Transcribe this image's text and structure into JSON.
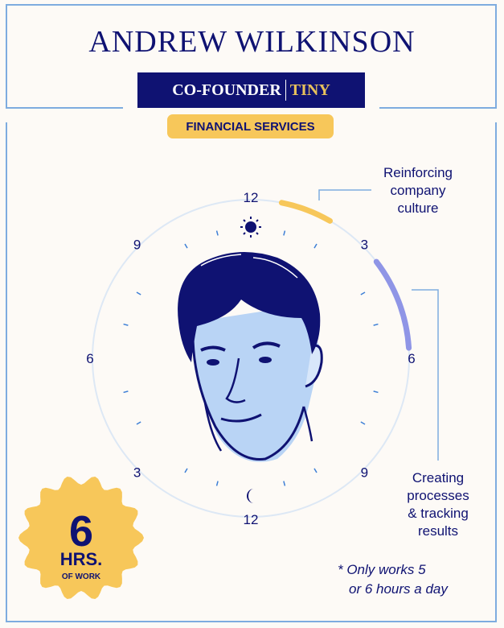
{
  "header": {
    "name": "ANDREW WILKINSON",
    "role": "CO-FOUNDER",
    "company": "TINY",
    "industry": "FINANCIAL SERVICES"
  },
  "clock": {
    "format": "24-hour dial, noon at top, midnight at bottom",
    "labels": [
      {
        "hour": 12,
        "text": "12"
      },
      {
        "hour": 15,
        "text": "3"
      },
      {
        "hour": 18,
        "text": "6"
      },
      {
        "hour": 21,
        "text": "9"
      },
      {
        "hour": 24,
        "text": "12"
      },
      {
        "hour": 3,
        "text": "3"
      },
      {
        "hour": 6,
        "text": "6"
      },
      {
        "hour": 9,
        "text": "9"
      }
    ],
    "icons": {
      "top": "sun-icon",
      "bottom": "moon-icon"
    },
    "activities": [
      {
        "label": "Reinforcing company culture",
        "start_hour": 12.75,
        "end_hour": 14,
        "color": "#f7c75a"
      },
      {
        "label": "Creating processes & tracking results",
        "start_hour": 15.5,
        "end_hour": 17.75,
        "color": "#8f95e6"
      }
    ]
  },
  "annotations": {
    "culture_lines": [
      "Reinforcing",
      "company",
      "culture"
    ],
    "processes_lines": [
      "Creating",
      "processes",
      "& tracking",
      "results"
    ]
  },
  "badge": {
    "number": "6",
    "unit": "HRS.",
    "caption": "OF WORK"
  },
  "footnote": {
    "line1": "* Only works 5",
    "line2": "or 6 hours a day"
  },
  "colors": {
    "navy": "#0f1272",
    "yellow": "#f7c75a",
    "purple": "#8f95e6",
    "frame": "#7eacdf",
    "background": "#fdfaf6"
  }
}
